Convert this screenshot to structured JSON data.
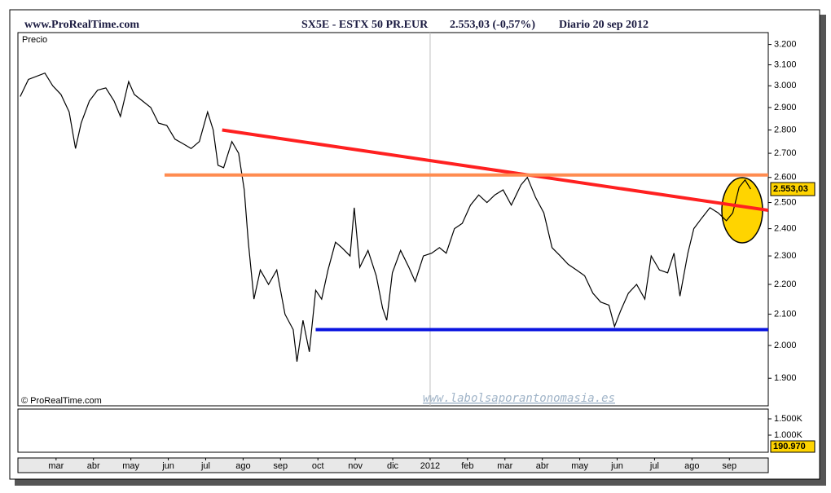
{
  "chart_data": {
    "type": "line",
    "site": "www.ProRealTime.com",
    "title": "SX5E - ESTX 50 PR.EUR",
    "quote": "2.553,03 (-0,57%)",
    "period": "Diario  20 sep 2012",
    "copyright": "© ProRealTime.com",
    "watermark": "www.labolsaporantonomasia.es",
    "log_scale": true,
    "xlim": [
      -1.02,
      19.04
    ],
    "xticks": [
      {
        "value": 0,
        "label": "mar"
      },
      {
        "value": 1,
        "label": "abr"
      },
      {
        "value": 2,
        "label": "may"
      },
      {
        "value": 3,
        "label": "jun"
      },
      {
        "value": 4,
        "label": "jul"
      },
      {
        "value": 5,
        "label": "ago"
      },
      {
        "value": 6,
        "label": "sep"
      },
      {
        "value": 7,
        "label": "oct"
      },
      {
        "value": 8,
        "label": "nov"
      },
      {
        "value": 9,
        "label": "dic"
      },
      {
        "value": 10,
        "label": "2012"
      },
      {
        "value": 11,
        "label": "feb"
      },
      {
        "value": 12,
        "label": "mar"
      },
      {
        "value": 13,
        "label": "abr"
      },
      {
        "value": 14,
        "label": "may"
      },
      {
        "value": 15,
        "label": "jun"
      },
      {
        "value": 16,
        "label": "jul"
      },
      {
        "value": 17,
        "label": "ago"
      },
      {
        "value": 18,
        "label": "sep"
      }
    ],
    "ylim": [
      1820,
      3260
    ],
    "yticks": [
      {
        "value": 3200,
        "label": "3.200"
      },
      {
        "value": 3100,
        "label": "3.100"
      },
      {
        "value": 3000,
        "label": "3.000"
      },
      {
        "value": 2900,
        "label": "2.900"
      },
      {
        "value": 2800,
        "label": "2.800"
      },
      {
        "value": 2700,
        "label": "2.700"
      },
      {
        "value": 2600,
        "label": "2.600"
      },
      {
        "value": 2500,
        "label": "2.500"
      },
      {
        "value": 2400,
        "label": "2.400"
      },
      {
        "value": 2300,
        "label": "2.300"
      },
      {
        "value": 2200,
        "label": "2.200"
      },
      {
        "value": 2100,
        "label": "2.100"
      },
      {
        "value": 2000,
        "label": "2.000"
      },
      {
        "value": 1900,
        "label": "1.900"
      }
    ],
    "last_price": 2553.03,
    "last_price_label": "2.553,03",
    "series": [
      {
        "name": "Precio",
        "color": "#000000",
        "x": [
          -0.96,
          -0.74,
          -0.3,
          -0.09,
          0.13,
          0.35,
          0.52,
          0.67,
          0.89,
          1.11,
          1.33,
          1.55,
          1.72,
          1.94,
          2.09,
          2.31,
          2.53,
          2.74,
          2.96,
          3.18,
          3.4,
          3.61,
          3.83,
          4.05,
          4.2,
          4.33,
          4.48,
          4.7,
          4.88,
          5.03,
          5.14,
          5.29,
          5.46,
          5.68,
          5.9,
          6.12,
          6.34,
          6.44,
          6.6,
          6.77,
          6.94,
          7.1,
          7.27,
          7.47,
          7.64,
          7.86,
          7.97,
          8.12,
          8.34,
          8.56,
          8.73,
          8.84,
          8.99,
          9.21,
          9.43,
          9.6,
          9.82,
          10.04,
          10.25,
          10.43,
          10.65,
          10.86,
          11.08,
          11.3,
          11.52,
          11.73,
          11.95,
          12.17,
          12.43,
          12.6,
          12.82,
          13.04,
          13.26,
          13.48,
          13.69,
          13.91,
          14.13,
          14.35,
          14.56,
          14.78,
          14.93,
          15.09,
          15.3,
          15.52,
          15.74,
          15.91,
          16.13,
          16.35,
          16.52,
          16.68,
          16.89,
          17.05,
          17.26,
          17.48,
          17.7,
          17.92,
          18.09,
          18.26,
          18.42,
          18.57
        ],
        "values": [
          2950,
          3030,
          3060,
          3000,
          2960,
          2880,
          2720,
          2830,
          2930,
          2980,
          2990,
          2930,
          2860,
          3020,
          2960,
          2930,
          2900,
          2830,
          2820,
          2760,
          2740,
          2720,
          2750,
          2880,
          2800,
          2650,
          2640,
          2750,
          2700,
          2550,
          2350,
          2150,
          2250,
          2200,
          2250,
          2100,
          2050,
          1950,
          2080,
          1980,
          2180,
          2150,
          2250,
          2350,
          2330,
          2300,
          2480,
          2260,
          2320,
          2230,
          2120,
          2080,
          2240,
          2320,
          2260,
          2210,
          2300,
          2310,
          2330,
          2310,
          2400,
          2420,
          2490,
          2530,
          2500,
          2530,
          2550,
          2490,
          2570,
          2600,
          2520,
          2460,
          2330,
          2300,
          2270,
          2250,
          2230,
          2170,
          2140,
          2130,
          2060,
          2110,
          2170,
          2200,
          2150,
          2300,
          2250,
          2240,
          2310,
          2160,
          2310,
          2400,
          2440,
          2480,
          2460,
          2430,
          2460,
          2560,
          2590,
          2553
        ]
      }
    ],
    "lines": [
      {
        "color": "#ff2020",
        "x": [
          4.44,
          19.04
        ],
        "y": [
          2800,
          2470
        ]
      },
      {
        "color": "#ff8c50",
        "x": [
          2.9,
          19.04
        ],
        "y": [
          2610,
          2610
        ]
      },
      {
        "color": "#0a14e0",
        "x": [
          6.94,
          19.04
        ],
        "y": [
          2050,
          2050
        ]
      }
    ],
    "volume": {
      "ylim": [
        475000,
        1800000
      ],
      "yticks": [
        {
          "value": 1500000,
          "label": "1.500K"
        },
        {
          "value": 1000000,
          "label": "1.000K"
        }
      ],
      "last_value": 190970,
      "last_label": "190.970"
    }
  }
}
